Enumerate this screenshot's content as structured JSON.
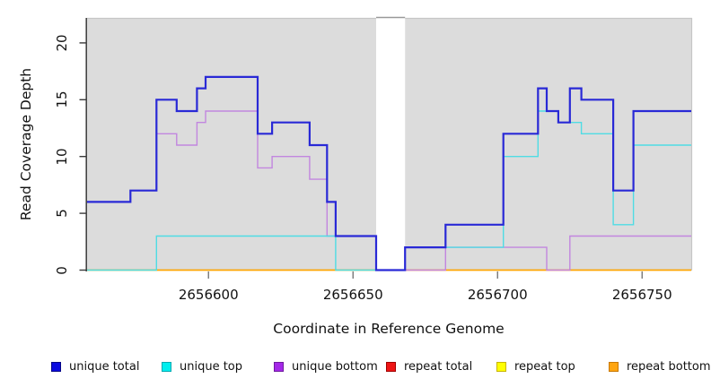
{
  "chart_data": {
    "type": "line",
    "subtype": "step",
    "title": "",
    "xlabel": "Coordinate in Reference Genome",
    "ylabel": "Read Coverage Depth",
    "xlim": [
      2656558,
      2656767
    ],
    "ylim": [
      0,
      22.2
    ],
    "x_ticks": [
      "2656600",
      "2656650",
      "2656700",
      "2656750"
    ],
    "x_tick_values": [
      2656600,
      2656650,
      2656700,
      2656750
    ],
    "y_ticks": [
      "0",
      "5",
      "10",
      "15",
      "20"
    ],
    "y_tick_values": [
      0,
      5,
      10,
      15,
      20
    ],
    "grid": false,
    "panel_background": "#dcdcdc",
    "panel_border_color": "#c6c6c6",
    "axis_color": "#3a3a3a",
    "gap_region": {
      "from": 2656658,
      "to": 2656668,
      "fill": "#ffffff",
      "cap_color": "#999999"
    },
    "series": [
      {
        "name": "repeat total",
        "line_color": "#dd2020",
        "width": 1.3,
        "steps": [
          [
            2656558,
            0
          ]
        ]
      },
      {
        "name": "repeat top",
        "line_color": "#ffff00",
        "width": 1.3,
        "steps": [
          [
            2656558,
            0
          ]
        ]
      },
      {
        "name": "repeat bottom",
        "line_color": "#ffa500",
        "width": 1.6,
        "steps": [
          [
            2656558,
            0
          ]
        ]
      },
      {
        "name": "unique bottom",
        "line_color": "#c286df",
        "width": 1.4,
        "steps": [
          [
            2656558,
            6
          ],
          [
            2656573,
            7
          ],
          [
            2656582,
            12
          ],
          [
            2656589,
            11
          ],
          [
            2656596,
            13
          ],
          [
            2656599,
            14
          ],
          [
            2656617,
            9
          ],
          [
            2656622,
            10
          ],
          [
            2656635,
            8
          ],
          [
            2656641,
            3
          ],
          [
            2656658,
            0
          ],
          [
            2656682,
            2
          ],
          [
            2656717,
            0
          ],
          [
            2656725,
            3
          ]
        ]
      },
      {
        "name": "unique top",
        "line_color": "#4fdce4",
        "width": 1.4,
        "steps": [
          [
            2656558,
            0
          ],
          [
            2656582,
            3
          ],
          [
            2656644,
            0
          ],
          [
            2656668,
            2
          ],
          [
            2656702,
            10
          ],
          [
            2656714,
            14
          ],
          [
            2656721,
            13
          ],
          [
            2656729,
            12
          ],
          [
            2656740,
            4
          ],
          [
            2656747,
            11
          ]
        ]
      },
      {
        "name": "unique total",
        "line_color": "#2929d6",
        "width": 2.2,
        "steps": [
          [
            2656558,
            6
          ],
          [
            2656573,
            7
          ],
          [
            2656582,
            15
          ],
          [
            2656589,
            14
          ],
          [
            2656596,
            16
          ],
          [
            2656599,
            17
          ],
          [
            2656617,
            12
          ],
          [
            2656622,
            13
          ],
          [
            2656635,
            11
          ],
          [
            2656641,
            6
          ],
          [
            2656644,
            3
          ],
          [
            2656658,
            0
          ],
          [
            2656668,
            2
          ],
          [
            2656682,
            4
          ],
          [
            2656702,
            12
          ],
          [
            2656714,
            16
          ],
          [
            2656717,
            14
          ],
          [
            2656721,
            13
          ],
          [
            2656725,
            16
          ],
          [
            2656729,
            15
          ],
          [
            2656740,
            7
          ],
          [
            2656747,
            14
          ]
        ]
      }
    ],
    "legend": [
      {
        "label": "unique total",
        "fill": "#0b0be0",
        "border": "#060685"
      },
      {
        "label": "unique top",
        "fill": "#00eeee",
        "border": "#00a8b0"
      },
      {
        "label": "unique bottom",
        "fill": "#a428e8",
        "border": "#6f1a9e"
      },
      {
        "label": "repeat total",
        "fill": "#ee1515",
        "border": "#a00000"
      },
      {
        "label": "repeat top",
        "fill": "#ffff00",
        "border": "#c8b400"
      },
      {
        "label": "repeat bottom",
        "fill": "#ffa510",
        "border": "#c87800"
      }
    ],
    "legend_position": "bottom"
  }
}
